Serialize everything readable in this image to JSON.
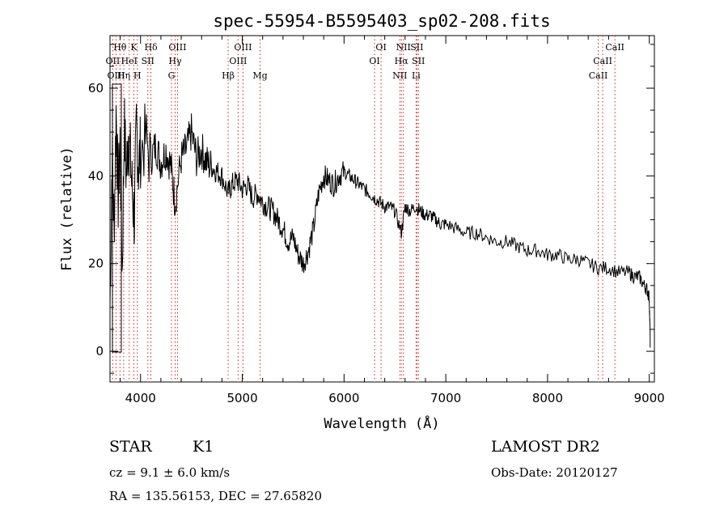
{
  "chart_data": {
    "type": "line",
    "title": "spec-55954-B5595403_sp02-208.fits",
    "xlabel": "Wavelength (Å)",
    "ylabel": "Flux (relative)",
    "xlim": [
      3700,
      9050
    ],
    "ylim": [
      -7,
      72
    ],
    "x_ticks": [
      "4000",
      "5000",
      "6000",
      "7000",
      "8000",
      "9000"
    ],
    "y_ticks": [
      "0",
      "20",
      "40",
      "60"
    ],
    "x_tick_values": [
      4000,
      5000,
      6000,
      7000,
      8000,
      9000
    ],
    "y_tick_values": [
      0,
      20,
      40,
      60
    ],
    "grid": false,
    "series": [
      {
        "x": [
          3700,
          3720,
          3740,
          3760,
          3780,
          3800,
          3820,
          3840,
          3860,
          3880,
          3900,
          3920,
          3940,
          3960,
          3980,
          4000,
          4050,
          4100,
          4150,
          4200,
          4250,
          4300,
          4340,
          4400,
          4450,
          4500,
          4550,
          4600,
          4650,
          4700,
          4750,
          4800,
          4861,
          4900,
          4950,
          5000,
          5050,
          5100,
          5150,
          5200,
          5250,
          5300,
          5350,
          5400,
          5450,
          5500,
          5550,
          5600,
          5650,
          5700,
          5750,
          5800,
          5850,
          5900,
          5950,
          6000,
          6050,
          6100,
          6150,
          6200,
          6250,
          6300,
          6350,
          6400,
          6450,
          6500,
          6563,
          6600,
          6650,
          6700,
          6750,
          6800,
          6850,
          6900,
          6950,
          7000,
          7100,
          7200,
          7300,
          7400,
          7500,
          7600,
          7700,
          7800,
          7900,
          8000,
          8100,
          8200,
          8300,
          8400,
          8500,
          8600,
          8700,
          8800,
          8850,
          8900,
          8950,
          8980,
          9000,
          9010
        ],
        "y": [
          10,
          45,
          28,
          55,
          35,
          48,
          18,
          52,
          40,
          50,
          44,
          36,
          30,
          52,
          42,
          46,
          48,
          44,
          47,
          43,
          46,
          42,
          34,
          44,
          46,
          50,
          44,
          46,
          43,
          42,
          41,
          40,
          36,
          38,
          39,
          37,
          38,
          35,
          36,
          34,
          33,
          32,
          30,
          28,
          25,
          26,
          22,
          20,
          23,
          28,
          36,
          40,
          39,
          38,
          40,
          41,
          40,
          39,
          38,
          37,
          36,
          35,
          34,
          33,
          33,
          32,
          27,
          33,
          32,
          33,
          32,
          31,
          31,
          30,
          29,
          29,
          28,
          27,
          27,
          26,
          25,
          25,
          24,
          23,
          23,
          22,
          22,
          21,
          21,
          20,
          19,
          19,
          18,
          18,
          17,
          17,
          15,
          14,
          12,
          1
        ]
      }
    ],
    "line_markers": [
      {
        "label": "Hθ",
        "x": 3798,
        "row": 0
      },
      {
        "label": "K",
        "x": 3934,
        "row": 0
      },
      {
        "label": "Hδ",
        "x": 4102,
        "row": 0
      },
      {
        "label": "OII",
        "x": 3727,
        "row": 1
      },
      {
        "label": "HeI",
        "x": 3889,
        "row": 1
      },
      {
        "label": "SII",
        "x": 4072,
        "row": 1
      },
      {
        "label": "OIII",
        "x": 3760,
        "row": 2
      },
      {
        "label": "Hη",
        "x": 3835,
        "row": 2
      },
      {
        "label": "H",
        "x": 3969,
        "row": 2
      },
      {
        "label": "OIII",
        "x": 4363,
        "row": 0
      },
      {
        "label": "Hγ",
        "x": 4340,
        "row": 1
      },
      {
        "label": "G",
        "x": 4304,
        "row": 2
      },
      {
        "label": "OIII",
        "x": 5007,
        "row": 0
      },
      {
        "label": "OIII",
        "x": 4959,
        "row": 1
      },
      {
        "label": "Hβ",
        "x": 4861,
        "row": 2
      },
      {
        "label": "Mg",
        "x": 5175,
        "row": 2
      },
      {
        "label": "OI",
        "x": 6364,
        "row": 0
      },
      {
        "label": "OI",
        "x": 6300,
        "row": 1
      },
      {
        "label": "NII",
        "x": 6583,
        "row": 0
      },
      {
        "label": "SII",
        "x": 6716,
        "row": 0
      },
      {
        "label": "Hα",
        "x": 6563,
        "row": 1
      },
      {
        "label": "SII",
        "x": 6731,
        "row": 1
      },
      {
        "label": "NII",
        "x": 6548,
        "row": 2
      },
      {
        "label": "Li",
        "x": 6708,
        "row": 2
      },
      {
        "label": "CaII",
        "x": 8662,
        "row": 0
      },
      {
        "label": "CaII",
        "x": 8542,
        "row": 1
      },
      {
        "label": "CaII",
        "x": 8498,
        "row": 2
      }
    ]
  },
  "info": {
    "object_class": "STAR",
    "subclass": "K1",
    "survey": "LAMOST DR2",
    "cz": "cz = 9.1 ± 6.0 km/s",
    "obs_date": "Obs-Date: 20120127",
    "coords": "RA = 135.56153, DEC =  27.65820"
  }
}
